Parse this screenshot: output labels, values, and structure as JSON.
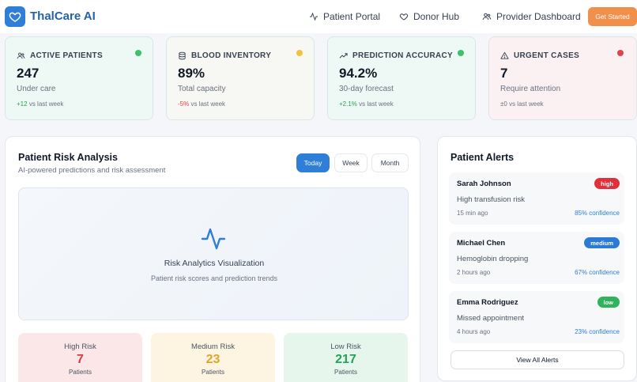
{
  "header": {
    "brand": "ThalCare AI",
    "nav": [
      {
        "label": "Patient Portal",
        "icon": "activity-icon"
      },
      {
        "label": "Donor Hub",
        "icon": "heart-icon"
      },
      {
        "label": "Provider Dashboard",
        "icon": "users-icon"
      }
    ],
    "cta_label": "Get Started"
  },
  "stats": [
    {
      "title": "ACTIVE PATIENTS",
      "icon": "users-icon",
      "value": "247",
      "sub": "Under care",
      "change": "+12",
      "change_suffix": "vs last week",
      "change_color": "#22a55a",
      "dot_color": "#3cc26b",
      "bg": "#eef8f4"
    },
    {
      "title": "BLOOD INVENTORY",
      "icon": "database-icon",
      "value": "89%",
      "sub": "Total capacity",
      "change": "-5%",
      "change_suffix": "vs last week",
      "change_color": "#e0434b",
      "dot_color": "#f3c23a",
      "bg": "#f7f8f3"
    },
    {
      "title": "PREDICTION ACCURACY",
      "icon": "trending-up-icon",
      "value": "94.2%",
      "sub": "30-day forecast",
      "change": "+2.1%",
      "change_suffix": "vs last week",
      "change_color": "#22a55a",
      "dot_color": "#3cc26b",
      "bg": "#eef8f4"
    },
    {
      "title": "URGENT CASES",
      "icon": "alert-triangle-icon",
      "value": "7",
      "sub": "Require attention",
      "change": "±0",
      "change_suffix": "vs last week",
      "change_color": "#6b7280",
      "dot_color": "#e0434b",
      "bg": "#fbf1f2"
    }
  ],
  "risk_panel": {
    "title": "Patient Risk Analysis",
    "subtitle": "AI-powered predictions and risk assessment",
    "tabs": [
      "Today",
      "Week",
      "Month"
    ],
    "active_tab": "Today",
    "viz_title": "Risk Analytics Visualization",
    "viz_subtitle": "Patient risk scores and prediction trends",
    "levels": [
      {
        "label": "High Risk",
        "value": "7",
        "unit": "Patients",
        "color": "#d93a44",
        "bg": "#fbe7e8"
      },
      {
        "label": "Medium Risk",
        "value": "23",
        "unit": "Patients",
        "color": "#e1a52a",
        "bg": "#fdf4e2"
      },
      {
        "label": "Low Risk",
        "value": "217",
        "unit": "Patients",
        "color": "#22a55a",
        "bg": "#e6f6ec"
      }
    ]
  },
  "alerts": {
    "title": "Patient Alerts",
    "items": [
      {
        "name": "Sarah Johnson",
        "badge": "high",
        "badge_color": "#e0303b",
        "message": "High transfusion risk",
        "time": "15 min ago",
        "confidence": "85% confidence"
      },
      {
        "name": "Michael Chen",
        "badge": "medium",
        "badge_color": "#2b7bd6",
        "message": "Hemoglobin dropping",
        "time": "2 hours ago",
        "confidence": "67% confidence"
      },
      {
        "name": "Emma Rodriguez",
        "badge": "low",
        "badge_color": "#2fb45c",
        "message": "Missed appointment",
        "time": "4 hours ago",
        "confidence": "23% confidence"
      }
    ],
    "view_all_label": "View All Alerts"
  }
}
